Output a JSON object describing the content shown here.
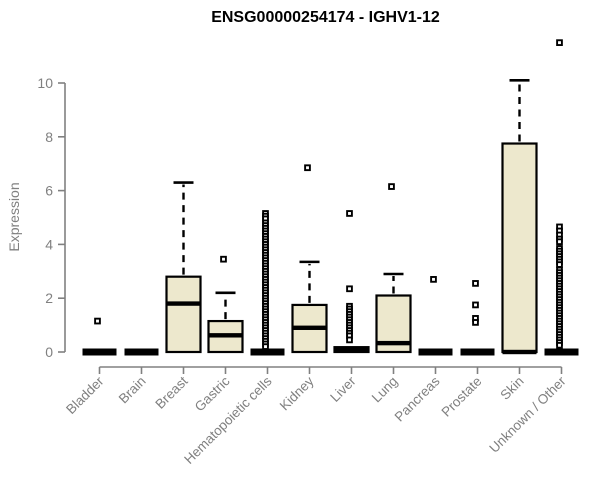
{
  "chart_data": {
    "type": "boxplot",
    "title": "ENSG00000254174 - IGHV1-12",
    "ylabel": "Expression",
    "xlabel": "",
    "yticks": [
      0,
      2,
      4,
      6,
      8,
      10
    ],
    "ylim": [
      0,
      11.7
    ],
    "grid": false,
    "legend": "none",
    "categories": [
      "Bladder",
      "Brain",
      "Breast",
      "Gastric",
      "Hematopoietic cells",
      "Kidney",
      "Liver",
      "Lung",
      "Pancreas",
      "Prostate",
      "Skin",
      "Unknown / Other"
    ],
    "boxes": [
      {
        "category": "Bladder",
        "q1": 0,
        "median": 0,
        "q3": 0,
        "whisker_low": 0,
        "whisker_high": 0,
        "outliers": [
          1.15
        ]
      },
      {
        "category": "Brain",
        "q1": 0,
        "median": 0,
        "q3": 0,
        "whisker_low": 0,
        "whisker_high": 0,
        "outliers": []
      },
      {
        "category": "Breast",
        "q1": 0,
        "median": 1.8,
        "q3": 2.8,
        "whisker_low": 0,
        "whisker_high": 6.3,
        "outliers": []
      },
      {
        "category": "Gastric",
        "q1": 0,
        "median": 0.62,
        "q3": 1.15,
        "whisker_low": 0,
        "whisker_high": 2.2,
        "outliers": [
          3.45
        ]
      },
      {
        "category": "Hematopoietic cells",
        "q1": 0,
        "median": 0,
        "q3": 0,
        "whisker_low": 0,
        "whisker_high": 0,
        "outliers": [
          5.15,
          5.05,
          4.95,
          4.8,
          4.7,
          4.6,
          4.5,
          4.4,
          4.3,
          4.2,
          4.1,
          4.0,
          3.9,
          3.8,
          3.7,
          3.6,
          3.5,
          3.4,
          3.3,
          3.2,
          3.1,
          3.0,
          2.9,
          2.8,
          2.7,
          2.6,
          2.5,
          2.4,
          2.3,
          2.2,
          2.1,
          2.0,
          1.9,
          1.8,
          1.7,
          1.6,
          1.5,
          1.4,
          1.3,
          1.2,
          1.1,
          1.0,
          0.9,
          0.8,
          0.7,
          0.6,
          0.5,
          0.4,
          0.3,
          0.2
        ]
      },
      {
        "category": "Kidney",
        "q1": 0,
        "median": 0.9,
        "q3": 1.75,
        "whisker_low": 0,
        "whisker_high": 3.35,
        "outliers": [
          6.85
        ]
      },
      {
        "category": "Liver",
        "q1": 0,
        "median": 0.08,
        "q3": 0.18,
        "whisker_low": 0,
        "whisker_high": 0.18,
        "outliers": [
          5.15,
          2.35,
          1.7,
          1.6,
          1.5,
          1.4,
          1.3,
          1.2,
          1.1,
          1.0,
          0.9,
          0.8,
          0.7,
          0.6,
          0.45
        ]
      },
      {
        "category": "Lung",
        "q1": 0,
        "median": 0.33,
        "q3": 2.1,
        "whisker_low": 0,
        "whisker_high": 2.9,
        "outliers": [
          6.15
        ]
      },
      {
        "category": "Pancreas",
        "q1": 0,
        "median": 0,
        "q3": 0,
        "whisker_low": 0,
        "whisker_high": 0,
        "outliers": [
          2.7
        ]
      },
      {
        "category": "Prostate",
        "q1": 0,
        "median": 0,
        "q3": 0,
        "whisker_low": 0,
        "whisker_high": 0,
        "outliers": [
          2.55,
          1.75,
          1.25,
          1.1
        ]
      },
      {
        "category": "Skin",
        "q1": 0,
        "median": 0,
        "q3": 7.75,
        "whisker_low": 0,
        "whisker_high": 10.1,
        "outliers": []
      },
      {
        "category": "Unknown / Other",
        "q1": 0,
        "median": 0,
        "q3": 0,
        "whisker_low": 0,
        "whisker_high": 0,
        "outliers": [
          11.5,
          4.65,
          4.5,
          4.35,
          4.2,
          4.1,
          3.85,
          3.75,
          3.65,
          3.55,
          3.45,
          3.35,
          3.25,
          3.05,
          2.95,
          2.85,
          2.75,
          2.65,
          2.55,
          2.45,
          2.35,
          2.25,
          2.15,
          2.05,
          1.95,
          1.85,
          1.75,
          1.65,
          1.55,
          1.45,
          1.35,
          1.25,
          1.15,
          1.05,
          0.95,
          0.85,
          0.75,
          0.65,
          0.55,
          0.45,
          0.35,
          0.25
        ]
      }
    ],
    "colors": {
      "box_fill": "#ede8cd",
      "box_stroke": "#000000",
      "median": "#000000",
      "whisker": "#000000",
      "outlier": "#000000",
      "axis": "#808080",
      "title": "#000000",
      "background": "#ffffff"
    }
  }
}
